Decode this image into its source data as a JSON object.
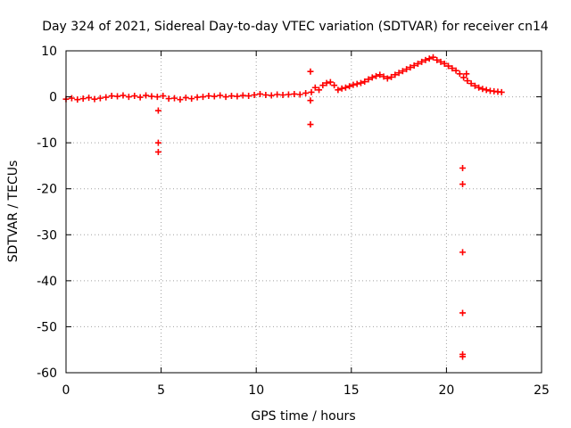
{
  "chart_data": {
    "type": "scatter",
    "title": "Day 324 of 2021, Sidereal Day-to-day VTEC variation (SDTVAR) for receiver cn14",
    "xlabel": "GPS time / hours",
    "ylabel": "SDTVAR / TECUs",
    "xlim": [
      0,
      25
    ],
    "ylim": [
      -60,
      10
    ],
    "xticks": [
      0,
      5,
      10,
      15,
      20,
      25
    ],
    "yticks": [
      -60,
      -50,
      -40,
      -30,
      -20,
      -10,
      0,
      10
    ],
    "xtick_labels": [
      "0",
      "5",
      "10",
      "15",
      "20",
      "25"
    ],
    "ytick_labels": [
      "-60",
      "-50",
      "-40",
      "-30",
      "-20",
      "-10",
      "0",
      "10"
    ],
    "grid": true,
    "marker": "+",
    "color": "#ff0000",
    "series": [
      {
        "name": "SDTVAR",
        "x": [
          0.0,
          0.3,
          0.6,
          0.9,
          1.2,
          1.5,
          1.8,
          2.1,
          2.4,
          2.7,
          3.0,
          3.3,
          3.6,
          3.9,
          4.2,
          4.5,
          4.8,
          5.1,
          5.4,
          5.7,
          6.0,
          6.3,
          6.6,
          6.9,
          7.2,
          7.5,
          7.8,
          8.1,
          8.4,
          8.7,
          9.0,
          9.3,
          9.6,
          9.9,
          10.2,
          10.5,
          10.8,
          11.1,
          11.4,
          11.7,
          12.0,
          12.3,
          12.6,
          12.9,
          13.1,
          13.3,
          13.5,
          13.7,
          13.9,
          14.1,
          14.3,
          14.5,
          14.7,
          14.9,
          15.1,
          15.3,
          15.5,
          15.7,
          15.9,
          16.1,
          16.3,
          16.5,
          16.7,
          16.9,
          17.1,
          17.3,
          17.5,
          17.7,
          17.9,
          18.1,
          18.3,
          18.5,
          18.7,
          18.9,
          19.1,
          19.3,
          19.5,
          19.7,
          19.9,
          20.1,
          20.3,
          20.5,
          20.7,
          20.9,
          21.1,
          21.3,
          21.5,
          21.7,
          21.9,
          22.1,
          22.3,
          22.5,
          22.7,
          22.9,
          4.85,
          4.85,
          4.85,
          12.85,
          12.85,
          12.85,
          20.85,
          20.85,
          20.85,
          20.85,
          20.85,
          20.85,
          21.05
        ],
        "y": [
          -0.5,
          -0.3,
          -0.6,
          -0.4,
          -0.2,
          -0.5,
          -0.3,
          -0.1,
          0.2,
          0.1,
          0.3,
          0.0,
          0.2,
          -0.1,
          0.3,
          0.1,
          0.0,
          0.2,
          -0.4,
          -0.3,
          -0.6,
          -0.2,
          -0.4,
          -0.1,
          0.0,
          0.2,
          0.1,
          0.3,
          0.0,
          0.2,
          0.1,
          0.3,
          0.2,
          0.4,
          0.6,
          0.4,
          0.3,
          0.5,
          0.4,
          0.5,
          0.6,
          0.5,
          0.8,
          1.0,
          2.0,
          1.5,
          2.5,
          3.0,
          3.2,
          2.5,
          1.5,
          1.8,
          2.0,
          2.3,
          2.6,
          2.8,
          3.0,
          3.3,
          3.8,
          4.2,
          4.5,
          4.8,
          4.4,
          4.0,
          4.3,
          4.8,
          5.2,
          5.6,
          6.0,
          6.4,
          6.8,
          7.2,
          7.6,
          8.0,
          8.3,
          8.6,
          8.0,
          7.6,
          7.2,
          6.7,
          6.2,
          5.7,
          5.0,
          4.2,
          3.5,
          2.9,
          2.4,
          2.0,
          1.7,
          1.5,
          1.3,
          1.2,
          1.1,
          1.0,
          -3.0,
          -10.0,
          -12.0,
          5.5,
          -0.8,
          -6.0,
          -15.5,
          -19.0,
          -33.8,
          -47.0,
          -56.0,
          -56.5,
          5.0
        ]
      }
    ]
  }
}
